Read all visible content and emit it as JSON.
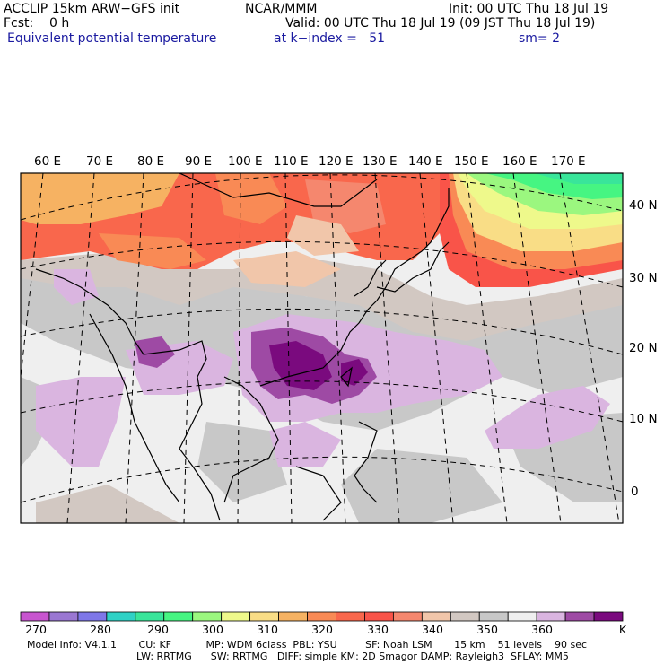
{
  "header": {
    "model": "ACCLIP 15km ARW−GFS init",
    "center": "NCAR/MMM",
    "init": "Init: 00 UTC Thu 18 Jul 19",
    "fcst": "Fcst:    0 h",
    "valid": "Valid: 00 UTC Thu 18 Jul 19 (09 JST Thu 18 Jul 19)",
    "field": "Equivalent potential temperature",
    "level": "at k−index =   51",
    "smooth": "sm= 2"
  },
  "map": {
    "lon_labels": [
      "60 E",
      "70 E",
      "80 E",
      "90 E",
      "100 E",
      "110 E",
      "120 E",
      "130 E",
      "140 E",
      "150 E",
      "160 E",
      "170 E"
    ],
    "lat_labels": [
      "40 N",
      "30 N",
      "20 N",
      "10 N",
      "0"
    ]
  },
  "colorbar": {
    "colors": [
      "#c855cf",
      "#9a77d2",
      "#7e77e8",
      "#2fd1c5",
      "#39e59a",
      "#46f582",
      "#9bf77f",
      "#eef98b",
      "#f9dd86",
      "#f6b262",
      "#f98a55",
      "#f9674c",
      "#f95449",
      "#f5876e",
      "#f1c6aa",
      "#d2c8c2",
      "#c8c8c8",
      "#efefef",
      "#dab5e0",
      "#9e4aa4",
      "#7a0a7e"
    ],
    "labels": [
      "270",
      "280",
      "290",
      "300",
      "310",
      "320",
      "330",
      "340",
      "350",
      "360"
    ],
    "unit": "K"
  },
  "footer": {
    "line1": "Model Info: V4.1.1       CU: KF           MP: WDM 6class  PBL: YSU         SF: Noah LSM       15 km    51 levels    90 sec",
    "line2": "LW: RRTMG      SW: RRTMG   DIFF: simple KM: 2D Smagor DAMP: Rayleigh3  SFLAY: MM5"
  }
}
